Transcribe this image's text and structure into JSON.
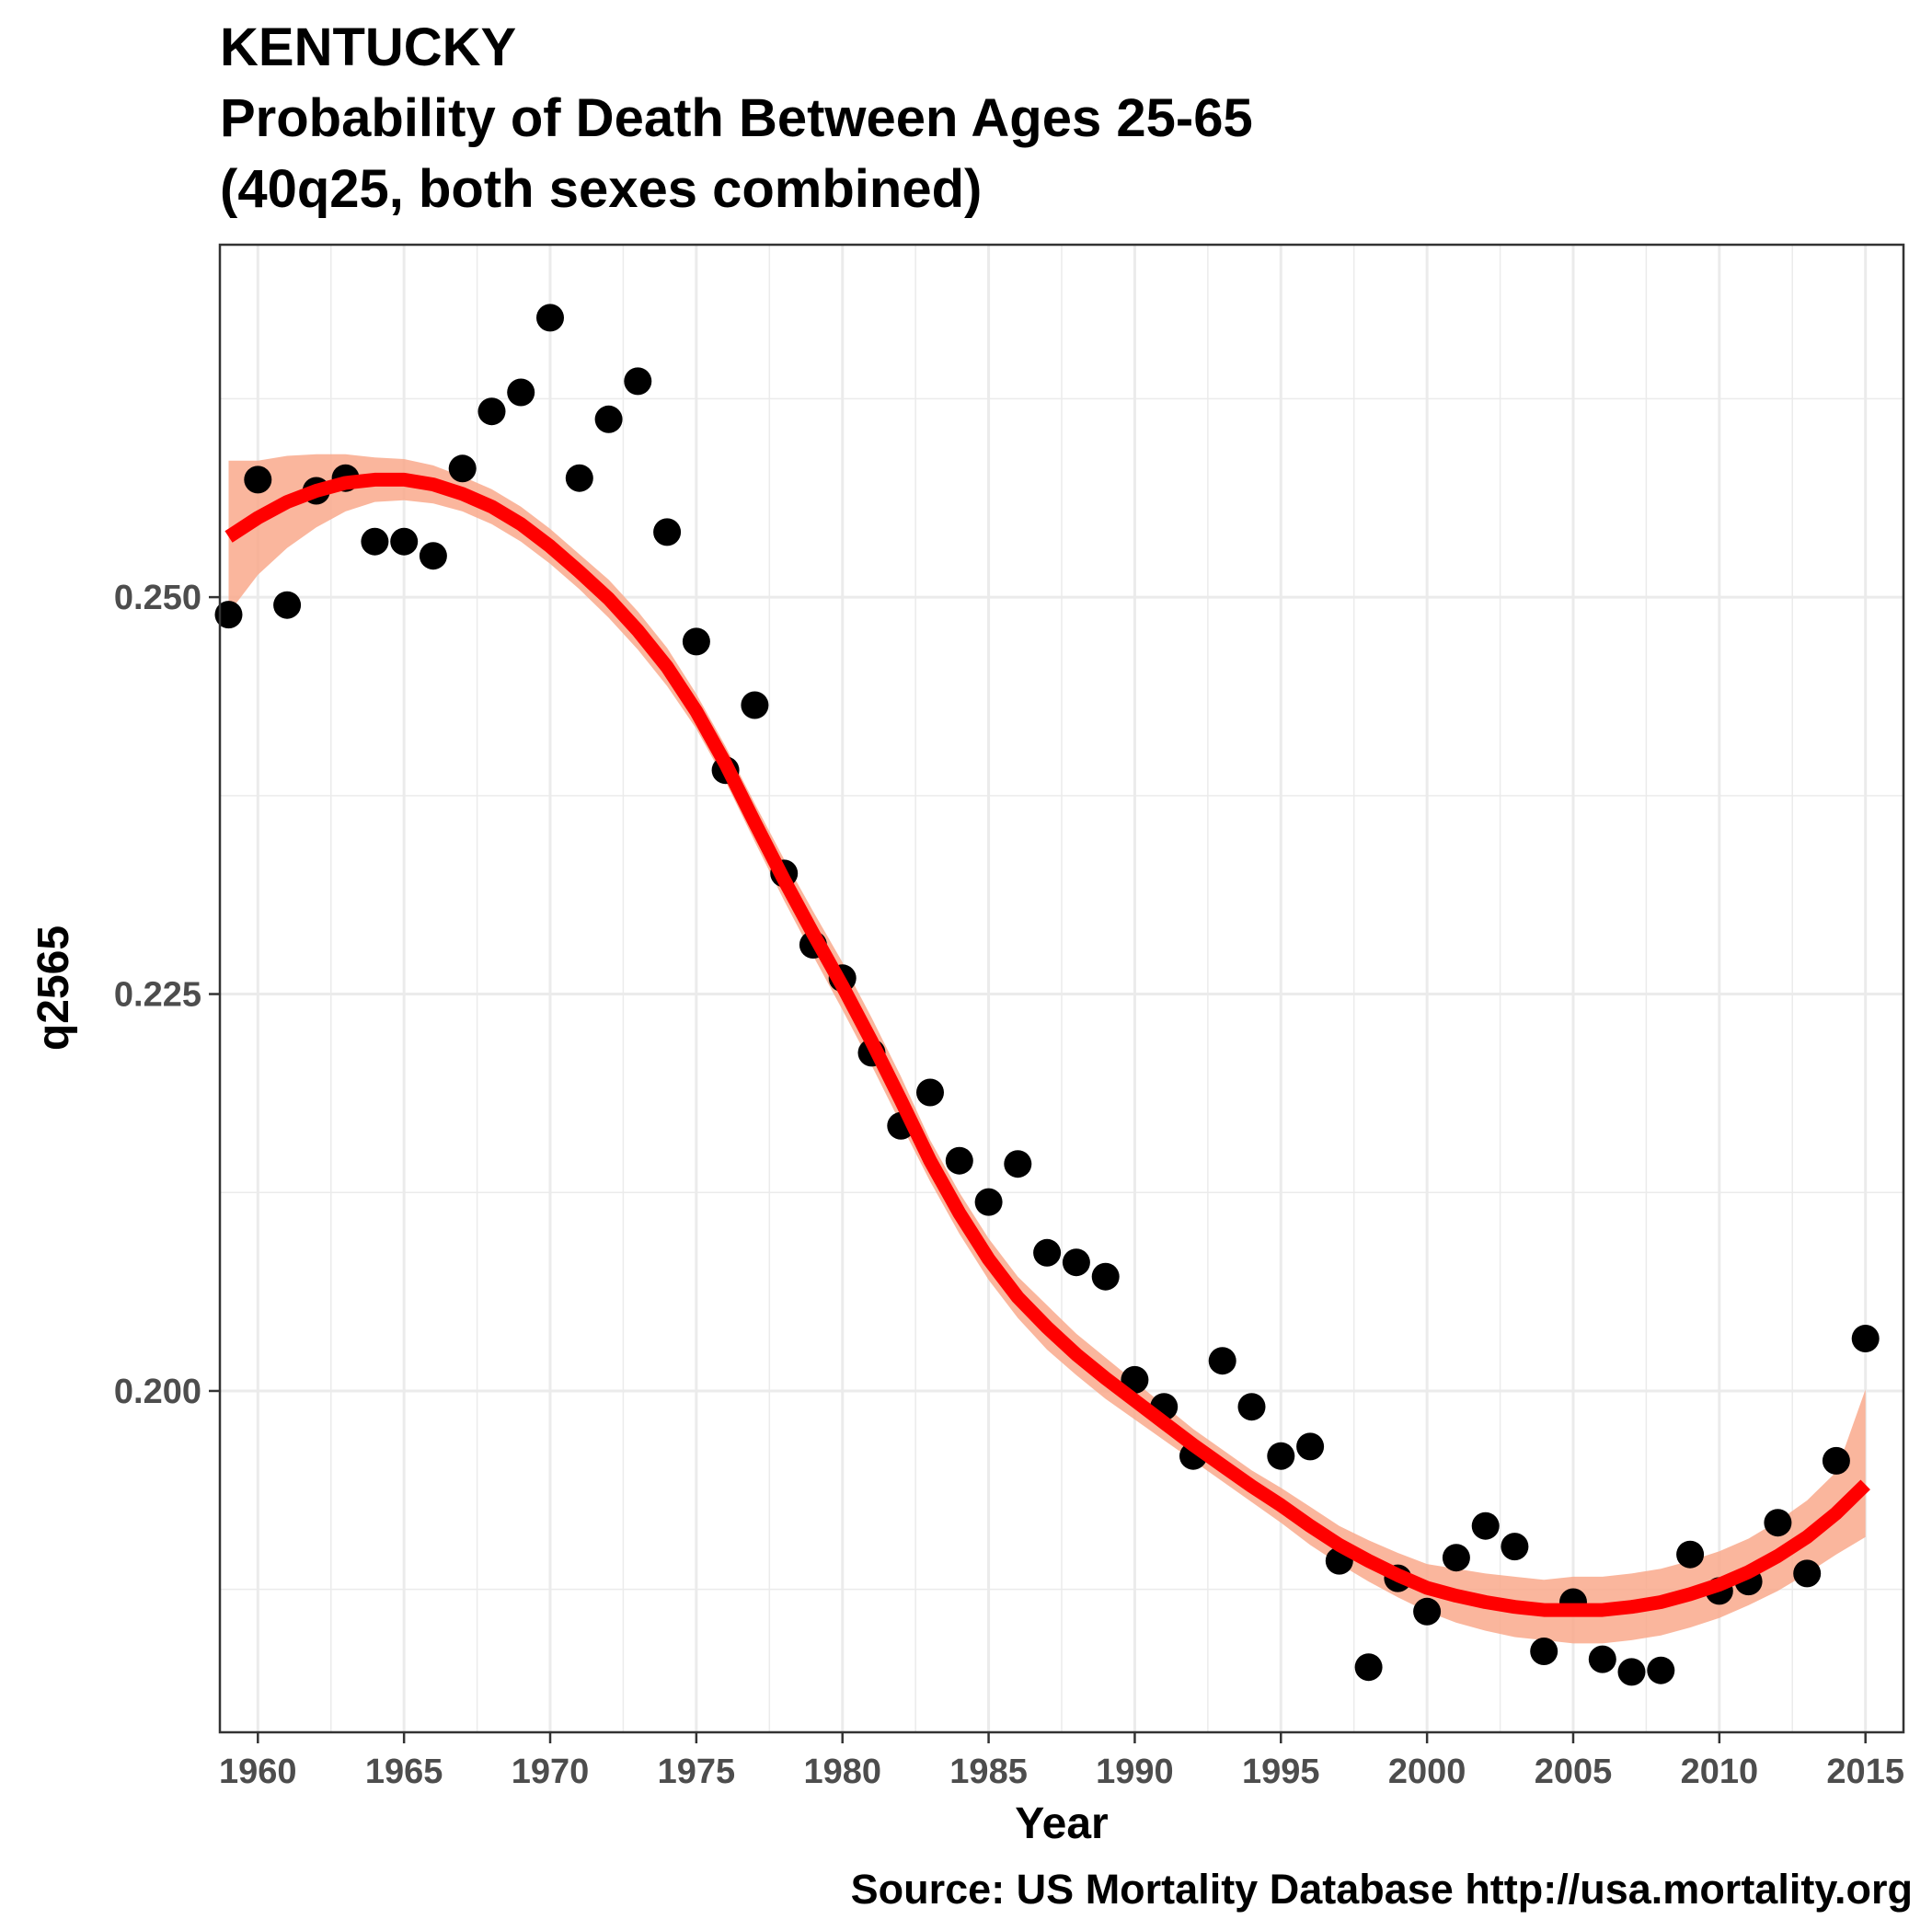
{
  "chart_data": {
    "type": "scatter",
    "title": [
      "KENTUCKY",
      "Probability of Death Between Ages 25-65",
      "(40q25, both sexes combined)"
    ],
    "xlabel": "Year",
    "ylabel": "q2565",
    "caption": "Source: US Mortality Database http://usa.mortality.org",
    "xlim": [
      1958.7,
      2016.3
    ],
    "ylim": [
      0.1785,
      0.2722
    ],
    "x_ticks": [
      "1960",
      "1965",
      "1970",
      "1975",
      "1980",
      "1985",
      "1990",
      "1995",
      "2000",
      "2005",
      "2010",
      "2015"
    ],
    "y_ticks": [
      "0.200",
      "0.225",
      "0.250"
    ],
    "grid": true,
    "colors": {
      "points": "#000000",
      "trend_line": "#ff0000",
      "ribbon": "#f9a98c",
      "panel_border": "#333333",
      "grid": "#ebebeb"
    },
    "points": {
      "x": [
        1959,
        1960,
        1961,
        1962,
        1963,
        1964,
        1965,
        1966,
        1967,
        1968,
        1969,
        1970,
        1971,
        1972,
        1973,
        1974,
        1975,
        1976,
        1977,
        1978,
        1979,
        1980,
        1981,
        1982,
        1983,
        1984,
        1985,
        1986,
        1987,
        1988,
        1989,
        1990,
        1991,
        1992,
        1993,
        1994,
        1995,
        1996,
        1997,
        1998,
        1999,
        2000,
        2001,
        2002,
        2003,
        2004,
        2005,
        2006,
        2007,
        2008,
        2009,
        2010,
        2011,
        2012,
        2013,
        2014,
        2015
      ],
      "y": [
        0.2489,
        0.2574,
        0.2495,
        0.2567,
        0.2575,
        0.2535,
        0.2535,
        0.2526,
        0.2581,
        0.2617,
        0.2629,
        0.2676,
        0.2575,
        0.2612,
        0.2636,
        0.2541,
        0.2472,
        0.2391,
        0.2432,
        0.2326,
        0.2281,
        0.226,
        0.2213,
        0.2167,
        0.2188,
        0.2145,
        0.2119,
        0.2143,
        0.2087,
        0.2081,
        0.2072,
        0.2007,
        0.199,
        0.1959,
        0.2019,
        0.199,
        0.1959,
        0.1965,
        0.1893,
        0.1826,
        0.1882,
        0.1861,
        0.1895,
        0.1915,
        0.1902,
        0.1836,
        0.1867,
        0.1831,
        0.1823,
        0.1824,
        0.1897,
        0.1874,
        0.188,
        0.1917,
        0.1885,
        0.1956,
        0.2033
      ]
    },
    "smooth": {
      "x": [
        1959,
        1960,
        1961,
        1962,
        1963,
        1964,
        1965,
        1966,
        1967,
        1968,
        1969,
        1970,
        1971,
        1972,
        1973,
        1974,
        1975,
        1976,
        1977,
        1978,
        1979,
        1980,
        1981,
        1982,
        1983,
        1984,
        1985,
        1986,
        1987,
        1988,
        1989,
        1990,
        1991,
        1992,
        1993,
        1994,
        1995,
        1996,
        1997,
        1998,
        1999,
        2000,
        2001,
        2002,
        2003,
        2004,
        2005,
        2006,
        2007,
        2008,
        2009,
        2010,
        2011,
        2012,
        2013,
        2014,
        2015
      ],
      "y": [
        0.2538,
        0.255,
        0.256,
        0.2567,
        0.2572,
        0.2574,
        0.2574,
        0.2571,
        0.2565,
        0.2557,
        0.2546,
        0.2532,
        0.2516,
        0.2499,
        0.2479,
        0.2456,
        0.2428,
        0.2395,
        0.2358,
        0.2322,
        0.2288,
        0.2255,
        0.222,
        0.2183,
        0.2145,
        0.2112,
        0.2083,
        0.2059,
        0.204,
        0.2023,
        0.2008,
        0.1994,
        0.198,
        0.1966,
        0.1953,
        0.194,
        0.1928,
        0.1915,
        0.1903,
        0.1893,
        0.1884,
        0.1876,
        0.1871,
        0.1867,
        0.1864,
        0.1862,
        0.1862,
        0.1862,
        0.1864,
        0.1867,
        0.1872,
        0.1878,
        0.1886,
        0.1896,
        0.1908,
        0.1923,
        0.1941
      ],
      "lower": [
        0.249,
        0.2514,
        0.2531,
        0.2544,
        0.2554,
        0.256,
        0.2561,
        0.2559,
        0.2554,
        0.2546,
        0.2535,
        0.2521,
        0.2505,
        0.2487,
        0.2467,
        0.2444,
        0.2417,
        0.2384,
        0.2346,
        0.2309,
        0.2274,
        0.224,
        0.2205,
        0.2168,
        0.2132,
        0.2099,
        0.207,
        0.2046,
        0.2026,
        0.201,
        0.1995,
        0.1982,
        0.1969,
        0.1956,
        0.1943,
        0.193,
        0.1917,
        0.1903,
        0.1891,
        0.188,
        0.187,
        0.1861,
        0.1854,
        0.1849,
        0.1845,
        0.1843,
        0.1841,
        0.1841,
        0.1843,
        0.1846,
        0.1851,
        0.1857,
        0.1865,
        0.1874,
        0.1885,
        0.1897,
        0.1908
      ],
      "upper": [
        0.2586,
        0.2586,
        0.2589,
        0.259,
        0.259,
        0.2588,
        0.2587,
        0.2583,
        0.2576,
        0.2568,
        0.2557,
        0.2543,
        0.2527,
        0.2511,
        0.2491,
        0.2468,
        0.2439,
        0.2406,
        0.237,
        0.2335,
        0.2302,
        0.227,
        0.2235,
        0.2198,
        0.2158,
        0.2125,
        0.2096,
        0.2072,
        0.2054,
        0.2036,
        0.2021,
        0.2006,
        0.1991,
        0.1976,
        0.1963,
        0.195,
        0.1939,
        0.1927,
        0.1915,
        0.1906,
        0.1898,
        0.1891,
        0.1888,
        0.1885,
        0.1883,
        0.1881,
        0.1883,
        0.1883,
        0.1885,
        0.1888,
        0.1893,
        0.1899,
        0.1907,
        0.1918,
        0.1931,
        0.1949,
        0.2001
      ]
    }
  }
}
